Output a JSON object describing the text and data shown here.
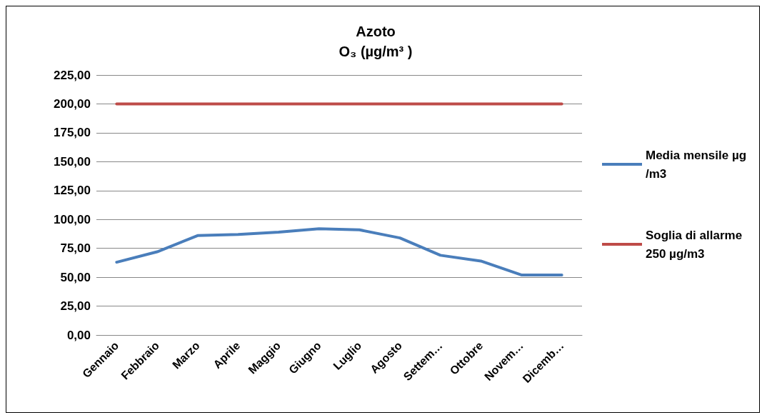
{
  "chart_data": {
    "type": "line",
    "title": "Azoto",
    "subtitle": "O₃ (µg/m³ )",
    "categories": [
      "Gennaio",
      "Febbraio",
      "Marzo",
      "Aprile",
      "Maggio",
      "Giugno",
      "Luglio",
      "Agosto",
      "Settem…",
      "Ottobre",
      "Novem…",
      "Dicemb…"
    ],
    "series": [
      {
        "name": "Media mensile µg/m3",
        "color": "#4a7ebb",
        "values": [
          63,
          72,
          86,
          87,
          89,
          92,
          91,
          84,
          69,
          64,
          52,
          52
        ]
      },
      {
        "name": "Soglia di allarme 250 µg/m3",
        "color": "#be4b48",
        "values": [
          200,
          200,
          200,
          200,
          200,
          200,
          200,
          200,
          200,
          200,
          200,
          200
        ]
      }
    ],
    "ylim": [
      0,
      225
    ],
    "yticks": [
      {
        "value": 0,
        "label": "0,00"
      },
      {
        "value": 25,
        "label": "25,00"
      },
      {
        "value": 50,
        "label": "50,00"
      },
      {
        "value": 75,
        "label": "75,00"
      },
      {
        "value": 100,
        "label": "100,00"
      },
      {
        "value": 125,
        "label": "125,00"
      },
      {
        "value": 150,
        "label": "150,00"
      },
      {
        "value": 175,
        "label": "175,00"
      },
      {
        "value": 200,
        "label": "200,00"
      },
      {
        "value": 225,
        "label": "225,00"
      }
    ],
    "grid": "y",
    "legend": "right",
    "marker": "none",
    "line_style": "solid"
  }
}
